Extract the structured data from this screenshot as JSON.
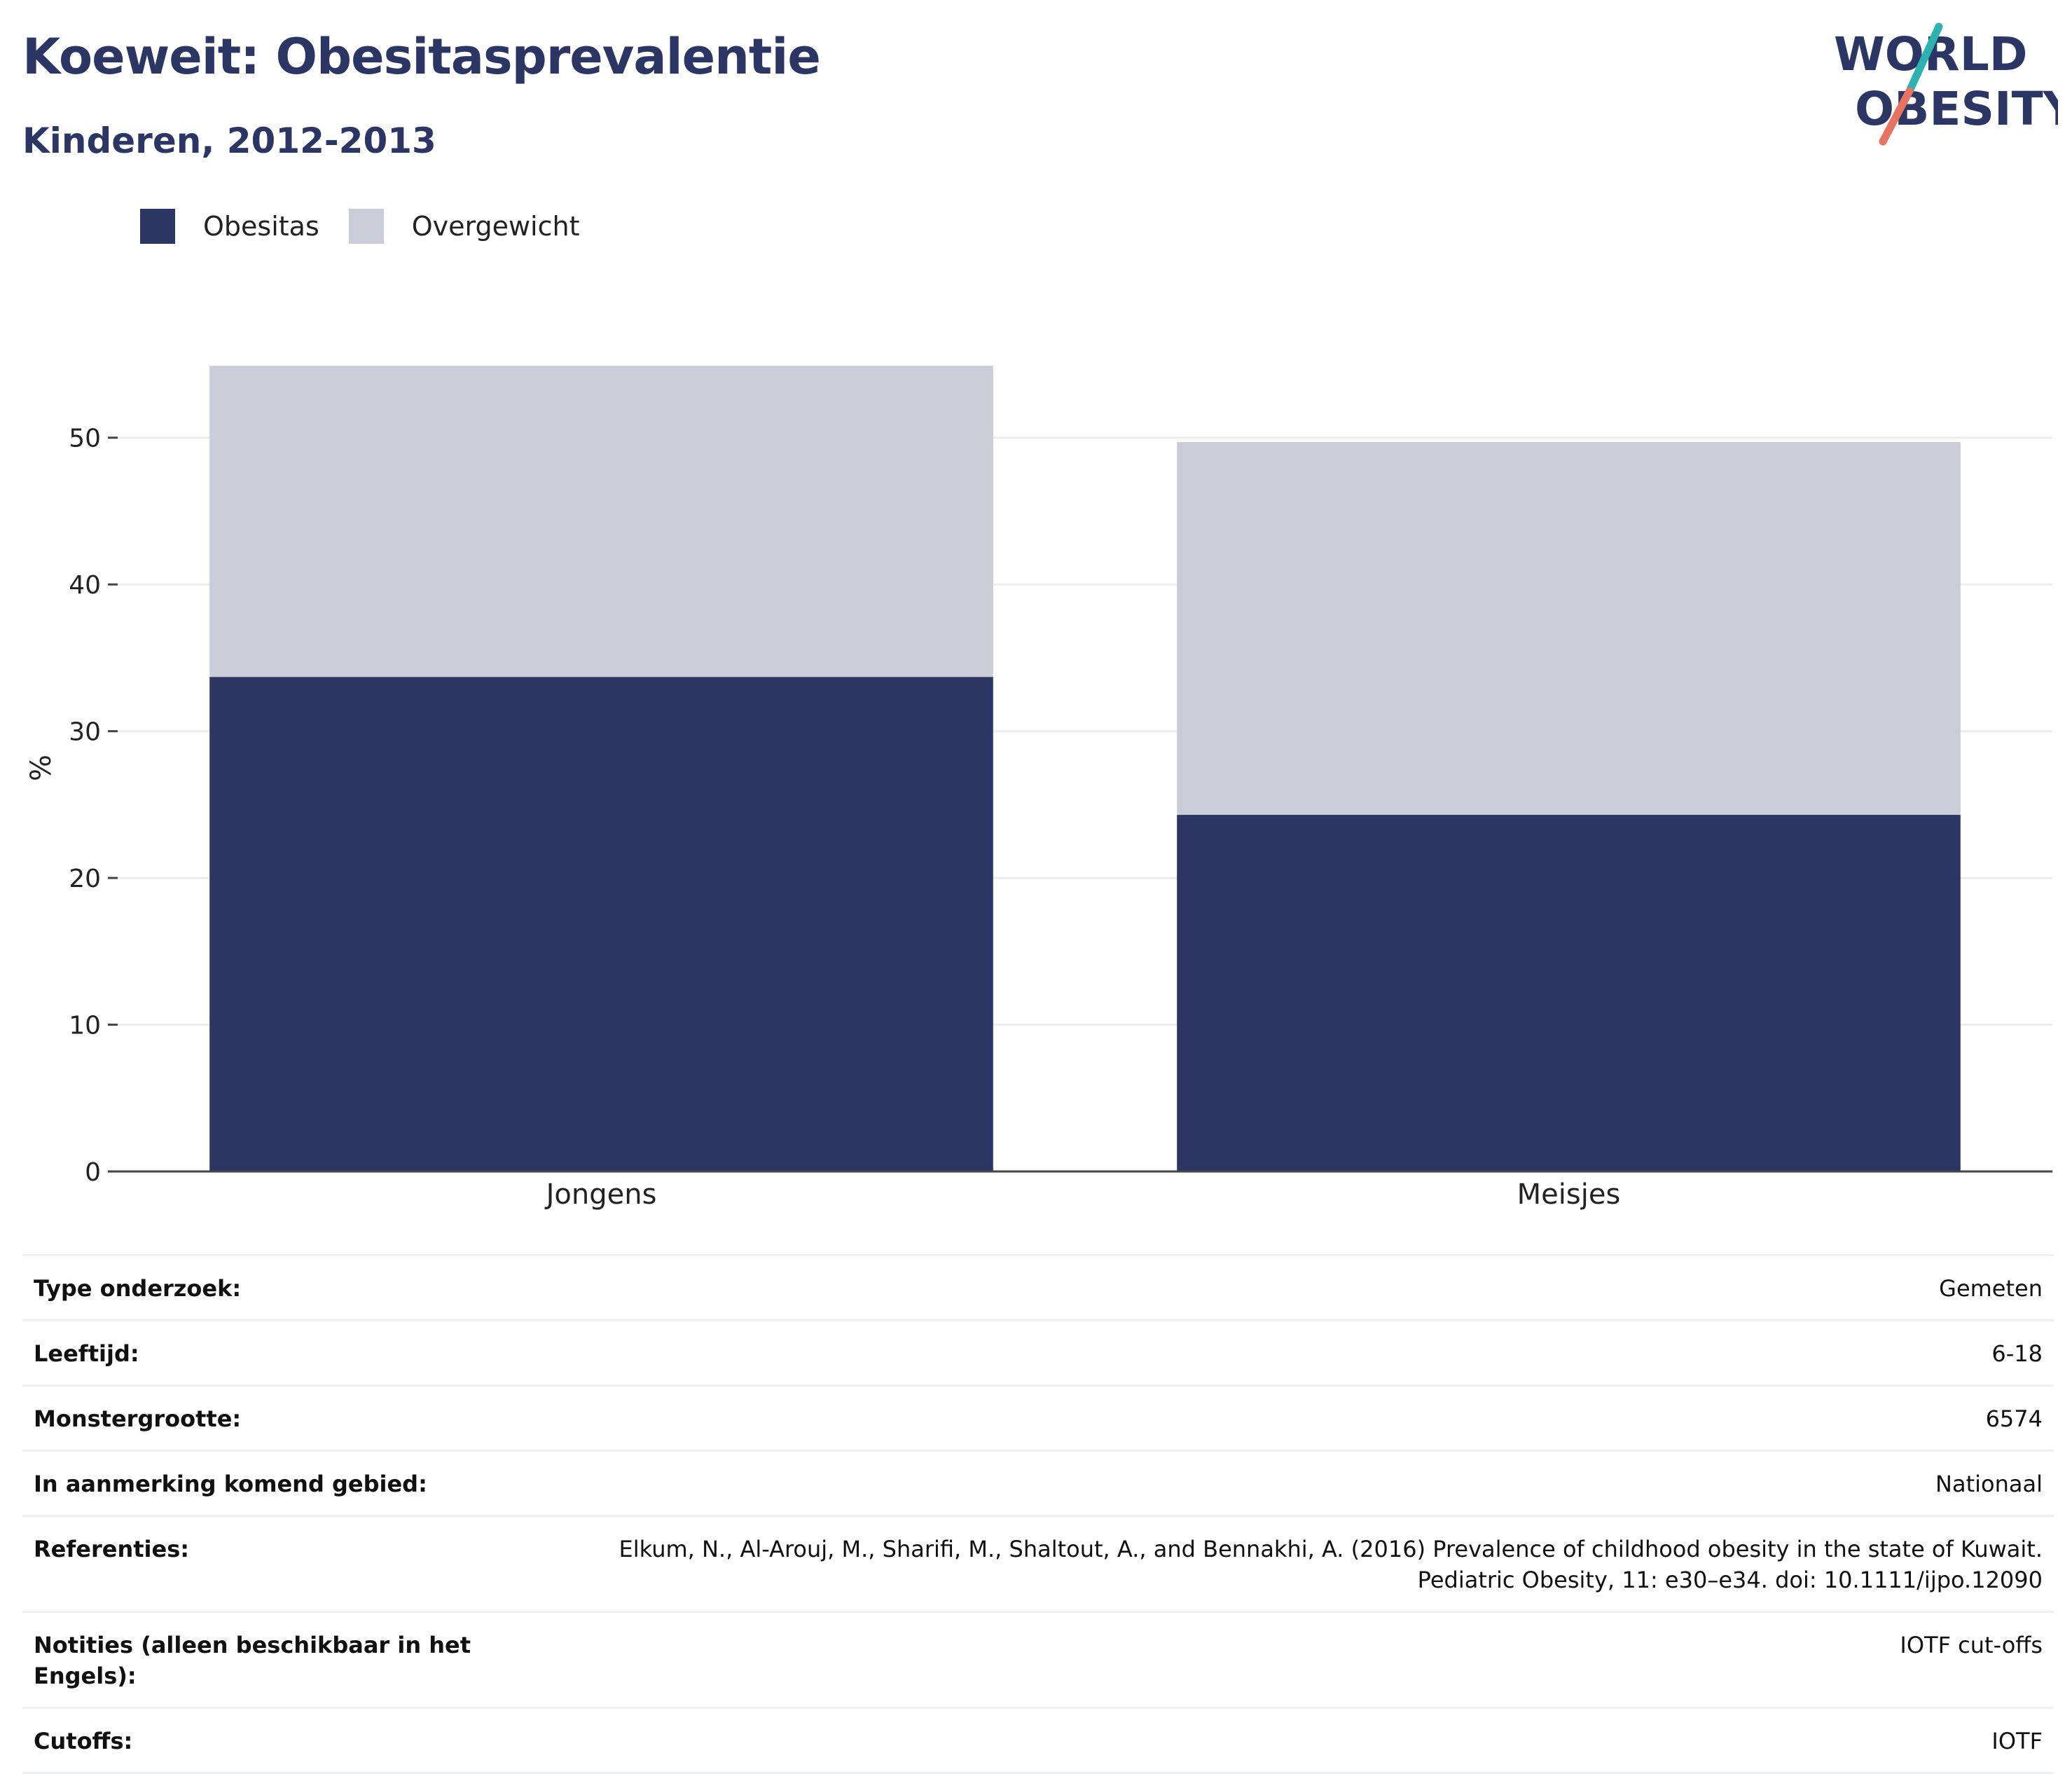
{
  "header": {
    "title": "Koeweit: Obesitasprevalentie",
    "subtitle": "Kinderen, 2012-2013"
  },
  "logo": {
    "line1": "WORLD",
    "line2": "OBESITY",
    "colors": {
      "text": "#2b3664",
      "slash_teal": "#2ab3b1",
      "slash_coral": "#e8735f"
    }
  },
  "legend": {
    "items": [
      {
        "label": "Obesitas",
        "color": "#2b3664"
      },
      {
        "label": "Overgewicht",
        "color": "#cacdd8"
      }
    ]
  },
  "chart_data": {
    "type": "bar",
    "stacked": true,
    "categories": [
      "Jongens",
      "Meisjes"
    ],
    "series": [
      {
        "name": "Obesitas",
        "values": [
          33.7,
          24.3
        ],
        "color": "#2b3664"
      },
      {
        "name": "Overgewicht",
        "values": [
          21.2,
          25.4
        ],
        "color": "#cacdd8"
      }
    ],
    "ylabel": "%",
    "xlabel": "",
    "ylim": [
      0,
      55
    ],
    "yticks": [
      0,
      10,
      20,
      30,
      40,
      50
    ],
    "grid": true,
    "legend_position": "top-left"
  },
  "info_table": {
    "rows": [
      {
        "label": "Type onderzoek:",
        "value": "Gemeten"
      },
      {
        "label": "Leeftijd:",
        "value": "6-18"
      },
      {
        "label": "Monstergrootte:",
        "value": "6574"
      },
      {
        "label": "In aanmerking komend gebied:",
        "value": "Nationaal"
      },
      {
        "label": "Referenties:",
        "value": "Elkum, N., Al-Arouj, M., Sharifi, M., Shaltout, A., and Bennakhi, A. (2016) Prevalence of childhood obesity in the state of Kuwait. Pediatric Obesity, 11: e30–e34. doi: 10.1111/ijpo.12090"
      },
      {
        "label": "Notities (alleen beschikbaar in het Engels):",
        "value": "IOTF cut-offs"
      },
      {
        "label": "Cutoffs:",
        "value": "IOTF"
      }
    ]
  }
}
